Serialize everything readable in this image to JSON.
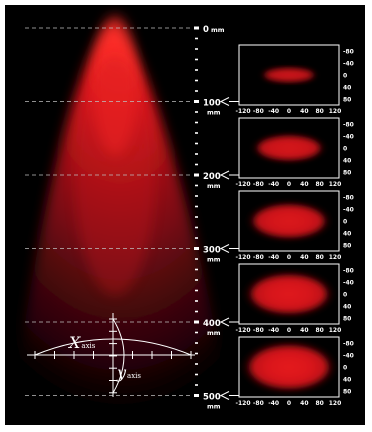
{
  "colors": {
    "background": "#000000",
    "beam": "#e0161b",
    "beam_core": "#ff2a25",
    "lines": "#ffffff",
    "guide": "#bfbfbf"
  },
  "scale": {
    "unit": "mm",
    "major_labels": [
      "0",
      "100",
      "200",
      "300",
      "400",
      "500"
    ]
  },
  "profiles": {
    "x_ticks": [
      "-120",
      "-80",
      "-40",
      "0",
      "40",
      "80",
      "120"
    ],
    "y_ticks": [
      "-80",
      "-40",
      "0",
      "40",
      "80"
    ],
    "panels": [
      {
        "spot_width": 0.62,
        "spot_height": 0.28,
        "glow": 0.55
      },
      {
        "spot_width": 0.78,
        "spot_height": 0.5,
        "glow": 0.7
      },
      {
        "spot_width": 0.88,
        "spot_height": 0.68,
        "glow": 0.8
      },
      {
        "spot_width": 0.94,
        "spot_height": 0.8,
        "glow": 0.88
      },
      {
        "spot_width": 0.98,
        "spot_height": 0.9,
        "glow": 0.95
      }
    ]
  },
  "axes": {
    "x_main": "X",
    "x_sub": "axis",
    "y_main": "y",
    "y_sub": "axis"
  }
}
